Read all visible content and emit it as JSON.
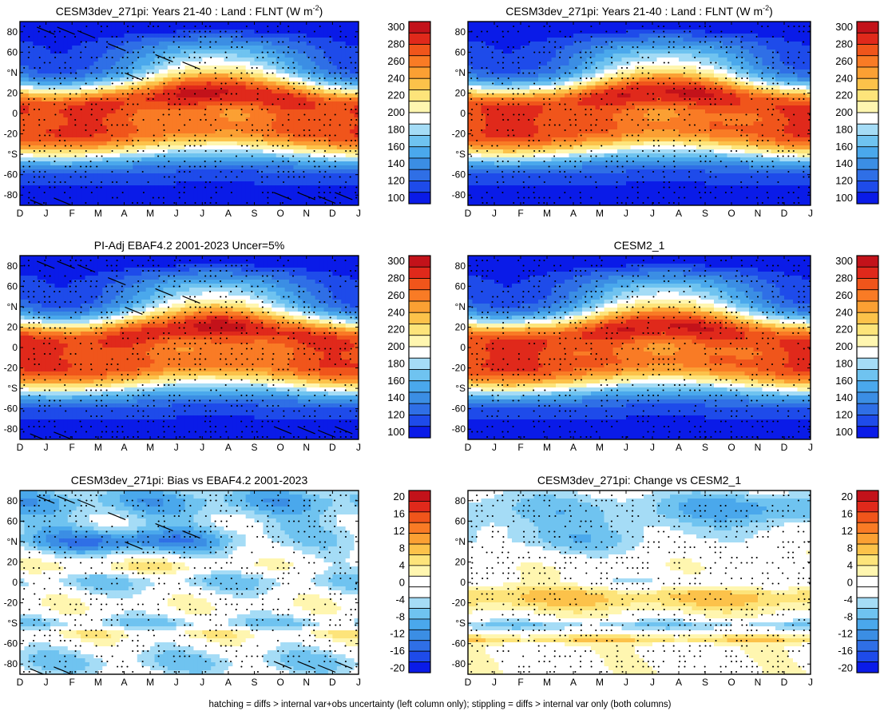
{
  "figure": {
    "footer": "hatching = diffs > internal var+obs uncertainty (left column only); stippling = diffs > internal var only (both columns)"
  },
  "colors": {
    "abs_scale": [
      "#0a1be8",
      "#1e4bea",
      "#2f6fe6",
      "#3b8ee4",
      "#4aa8ec",
      "#6fc3f0",
      "#a5dcf6",
      "#ffffff",
      "#fff6b0",
      "#fde47a",
      "#fcc24a",
      "#fba033",
      "#f97b25",
      "#f0551b",
      "#e0291b",
      "#c3121a"
    ],
    "diff_scale": [
      "#0a1be8",
      "#1e4bea",
      "#2f6fe6",
      "#3b8ee4",
      "#4aa8ec",
      "#6fc3f0",
      "#a5dcf6",
      "#ffffff",
      "#ffffff",
      "#fff6b0",
      "#fde47a",
      "#fcc24a",
      "#fba033",
      "#f97b25",
      "#f0551b",
      "#e0291b",
      "#c3121a"
    ]
  },
  "chart_data": [
    {
      "type": "heatmap",
      "title": "CESM3dev_271pi: Years 21-40 : Land : FLNT (W m",
      "title_sup": "-2",
      "title_end": ")",
      "x_tick_labels": [
        "D",
        "J",
        "F",
        "M",
        "A",
        "M",
        "J",
        "J",
        "A",
        "S",
        "O",
        "N",
        "D",
        "J"
      ],
      "y_tick_labels": [
        "80",
        "60",
        "°N",
        "20",
        "0",
        "-20",
        "°S",
        "-60",
        "-80"
      ],
      "ylim": [
        -90,
        90
      ],
      "colorbar_levels": [
        "300",
        "280",
        "260",
        "240",
        "220",
        "200",
        "180",
        "160",
        "140",
        "120",
        "100"
      ],
      "vmin": 90,
      "vmax": 310,
      "kind": "abs",
      "hatching": true,
      "stippling": true,
      "seed": 3
    },
    {
      "type": "heatmap",
      "title": "CESM3dev_271pi: Years 21-40 : Land : FLNT (W m",
      "title_sup": "-2",
      "title_end": ")",
      "x_tick_labels": [
        "D",
        "J",
        "F",
        "M",
        "A",
        "M",
        "J",
        "J",
        "A",
        "S",
        "O",
        "N",
        "D",
        "J"
      ],
      "y_tick_labels": [
        "80",
        "60",
        "°N",
        "20",
        "0",
        "-20",
        "°S",
        "-60",
        "-80"
      ],
      "ylim": [
        -90,
        90
      ],
      "colorbar_levels": [
        "300",
        "280",
        "260",
        "240",
        "220",
        "200",
        "180",
        "160",
        "140",
        "120",
        "100"
      ],
      "vmin": 90,
      "vmax": 310,
      "kind": "abs",
      "hatching": false,
      "stippling": true,
      "seed": 5
    },
    {
      "type": "heatmap",
      "title": "PI-Adj EBAF4.2 2001-2023 Uncer=5%",
      "x_tick_labels": [
        "D",
        "J",
        "F",
        "M",
        "A",
        "M",
        "J",
        "J",
        "A",
        "S",
        "O",
        "N",
        "D",
        "J"
      ],
      "y_tick_labels": [
        "80",
        "60",
        "°N",
        "20",
        "0",
        "-20",
        "°S",
        "-60",
        "-80"
      ],
      "ylim": [
        -90,
        90
      ],
      "colorbar_levels": [
        "300",
        "280",
        "260",
        "240",
        "220",
        "200",
        "180",
        "160",
        "140",
        "120",
        "100"
      ],
      "vmin": 90,
      "vmax": 310,
      "kind": "abs",
      "hatching": true,
      "stippling": true,
      "seed": 7
    },
    {
      "type": "heatmap",
      "title": "CESM2_1",
      "x_tick_labels": [
        "D",
        "J",
        "F",
        "M",
        "A",
        "M",
        "J",
        "J",
        "A",
        "S",
        "O",
        "N",
        "D",
        "J"
      ],
      "y_tick_labels": [
        "80",
        "60",
        "°N",
        "20",
        "0",
        "-20",
        "°S",
        "-60",
        "-80"
      ],
      "ylim": [
        -90,
        90
      ],
      "colorbar_levels": [
        "300",
        "280",
        "260",
        "240",
        "220",
        "200",
        "180",
        "160",
        "140",
        "120",
        "100"
      ],
      "vmin": 90,
      "vmax": 310,
      "kind": "abs",
      "hatching": false,
      "stippling": true,
      "seed": 11
    },
    {
      "type": "heatmap",
      "title": "CESM3dev_271pi: Bias vs EBAF4.2 2001-2023",
      "x_tick_labels": [
        "D",
        "J",
        "F",
        "M",
        "A",
        "M",
        "J",
        "J",
        "A",
        "S",
        "O",
        "N",
        "D",
        "J"
      ],
      "y_tick_labels": [
        "80",
        "60",
        "°N",
        "20",
        "0",
        "-20",
        "°S",
        "-60",
        "-80"
      ],
      "ylim": [
        -90,
        90
      ],
      "colorbar_levels": [
        "20",
        "16",
        "12",
        "8",
        "4",
        "0",
        "-4",
        "-8",
        "-12",
        "-16",
        "-20"
      ],
      "vmin": -22,
      "vmax": 22,
      "kind": "bias",
      "hatching": true,
      "stippling": true,
      "seed": 13
    },
    {
      "type": "heatmap",
      "title": "CESM3dev_271pi: Change vs CESM2_1",
      "x_tick_labels": [
        "D",
        "J",
        "F",
        "M",
        "A",
        "M",
        "J",
        "J",
        "A",
        "S",
        "O",
        "N",
        "D",
        "J"
      ],
      "y_tick_labels": [
        "80",
        "60",
        "°N",
        "20",
        "0",
        "-20",
        "°S",
        "-60",
        "-80"
      ],
      "ylim": [
        -90,
        90
      ],
      "colorbar_levels": [
        "20",
        "16",
        "12",
        "8",
        "4",
        "0",
        "-4",
        "-8",
        "-12",
        "-16",
        "-20"
      ],
      "vmin": -22,
      "vmax": 22,
      "kind": "change",
      "hatching": false,
      "stippling": true,
      "seed": 17
    }
  ]
}
